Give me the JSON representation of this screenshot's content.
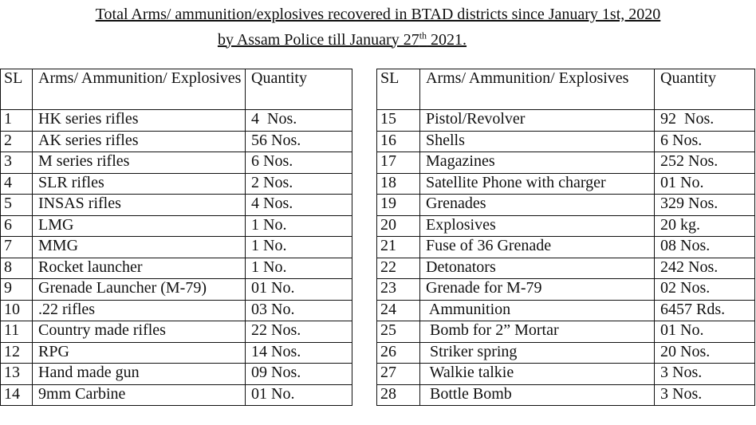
{
  "header": {
    "line1": "Total Arms/ ammunition/explosives recovered in BTAD districts since  January 1st, 2020",
    "line2": "by  Assam Police till January 27",
    "line2_sup": "th",
    "line2_end": " 2021."
  },
  "left_table": {
    "columns": [
      "SL",
      "Arms/ Ammunition/ Explosives",
      "Quantity"
    ],
    "rows": [
      [
        "1",
        "HK series rifles",
        "4  Nos."
      ],
      [
        "2",
        "AK series rifles",
        "56 Nos."
      ],
      [
        "3",
        "M series rifles",
        "6 Nos."
      ],
      [
        "4",
        "SLR rifles",
        "2 Nos."
      ],
      [
        "5",
        "INSAS rifles",
        "4 Nos."
      ],
      [
        "6",
        "LMG",
        "1 No."
      ],
      [
        "7",
        "MMG",
        "1 No."
      ],
      [
        "8",
        "Rocket launcher",
        "1 No."
      ],
      [
        "9",
        "Grenade Launcher (M-79)",
        "01 No."
      ],
      [
        "10",
        ".22 rifles",
        "03 No."
      ],
      [
        "11",
        "Country made rifles",
        "22 Nos."
      ],
      [
        "12",
        "RPG",
        "14 Nos."
      ],
      [
        "13",
        "Hand made gun",
        "09 Nos."
      ],
      [
        "14",
        "9mm Carbine",
        "01 No."
      ]
    ]
  },
  "right_table": {
    "columns": [
      "SL",
      "Arms/ Ammunition/ Explosives",
      "Quantity"
    ],
    "rows": [
      [
        "15",
        "Pistol/Revolver",
        "92  Nos."
      ],
      [
        "16",
        "Shells",
        "6 Nos."
      ],
      [
        "17",
        "Magazines",
        "252 Nos."
      ],
      [
        "18",
        "Satellite Phone with charger",
        "01 No."
      ],
      [
        "19",
        "Grenades",
        "329 Nos."
      ],
      [
        "20",
        "Explosives",
        "20 kg."
      ],
      [
        "21",
        "Fuse of 36 Grenade",
        "08 Nos."
      ],
      [
        "22",
        "Detonators",
        "242 Nos."
      ],
      [
        "23",
        "Grenade for M-79",
        "02 Nos."
      ],
      [
        "24",
        " Ammunition",
        "6457 Rds."
      ],
      [
        "25",
        " Bomb for 2” Mortar",
        "01 No."
      ],
      [
        "26",
        " Striker spring",
        "20 Nos."
      ],
      [
        "27",
        " Walkie talkie",
        "3 Nos."
      ],
      [
        "28",
        " Bottle Bomb",
        "3 Nos."
      ]
    ]
  }
}
